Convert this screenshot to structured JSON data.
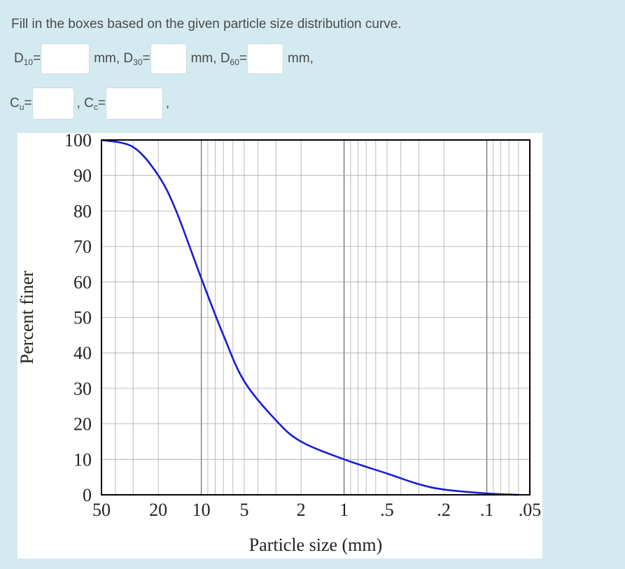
{
  "instruction": "Fill in the boxes based on the given particle size distribution curve.",
  "fields": {
    "d10_label": "D",
    "d10_sub": "10",
    "d30_prefix": "mm, D",
    "d30_sub": "30",
    "d60_prefix": "mm, D",
    "d60_sub": "60",
    "eq": "=",
    "end_text": "mm,",
    "cu_label": "C",
    "cu_sub": "u",
    "cc_prefix": ", C",
    "cc_sub": "c",
    "trailing_comma": ","
  },
  "chart_data": {
    "type": "line",
    "xlabel": "Particle size (mm)",
    "ylabel": "Percent finer",
    "x_scale": "log, reversed",
    "x_ticks": [
      "50",
      "20",
      "10",
      "5",
      "2",
      "1",
      ".5",
      ".2",
      ".1",
      ".05"
    ],
    "x_tick_values": [
      50,
      20,
      10,
      5,
      2,
      1,
      0.5,
      0.2,
      0.1,
      0.05
    ],
    "y_ticks": [
      "0",
      "10",
      "20",
      "30",
      "40",
      "50",
      "60",
      "70",
      "80",
      "90",
      "100"
    ],
    "xlim": [
      50,
      0.05
    ],
    "ylim": [
      0,
      100
    ],
    "grid": true,
    "series": [
      {
        "color": "#1a1ad6",
        "x": [
          50,
          30,
          20,
          15,
          10,
          7,
          5,
          3,
          2,
          1,
          0.5,
          0.3,
          0.2,
          0.1,
          0.06
        ],
        "y": [
          100,
          98,
          90,
          80,
          61,
          45,
          32,
          21,
          15,
          10,
          6,
          3,
          1.5,
          0.4,
          0
        ]
      }
    ]
  }
}
